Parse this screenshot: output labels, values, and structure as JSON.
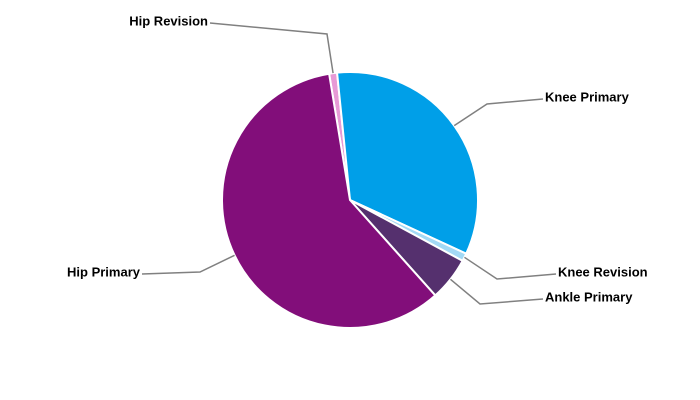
{
  "chart_data": {
    "type": "pie",
    "categories": [
      "Hip Revision",
      "Knee Primary",
      "Knee Revision",
      "Ankle Primary",
      "Hip Primary"
    ],
    "values": [
      1,
      33.5,
      1,
      5.5,
      59
    ],
    "colors": [
      "#e79ad6",
      "#009fe8",
      "#a3d9f5",
      "#55306e",
      "#820e7a"
    ]
  }
}
